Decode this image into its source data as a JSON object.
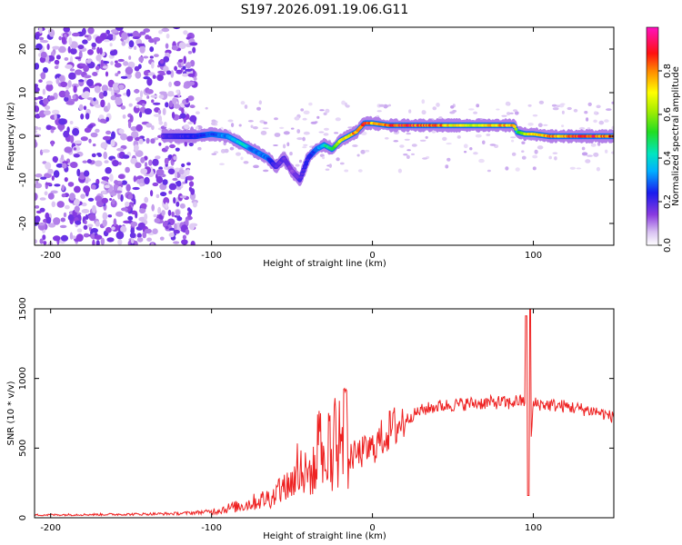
{
  "title": "S197.2026.091.19.06.G11",
  "chart_data": [
    {
      "type": "heatmap",
      "title": "S197.2026.091.19.06.G11",
      "xlabel": "Height of straight line (km)",
      "ylabel": "Frequency (Hz)",
      "xlim": [
        -210,
        150
      ],
      "ylim": [
        -25,
        25
      ],
      "xticks": [
        -200,
        -100,
        0,
        100
      ],
      "yticks": [
        -20,
        -10,
        0,
        10,
        20
      ],
      "colorbar": {
        "label": "Normalized spectral amplitude",
        "range": [
          0,
          1
        ],
        "ticks": [
          "0.0",
          "0.2",
          "0.4",
          "0.6",
          "0.8"
        ],
        "colormap": "rainbow (white-violet-blue-cyan-green-yellow-red-magenta)"
      },
      "ridge": {
        "description": "Main Doppler ridge of normalized spectral amplitude vs height",
        "x": [
          -130,
          -110,
          -100,
          -90,
          -80,
          -75,
          -70,
          -65,
          -60,
          -55,
          -50,
          -45,
          -40,
          -35,
          -30,
          -25,
          -20,
          -15,
          -10,
          -5,
          0,
          10,
          20,
          40,
          60,
          80,
          88,
          90,
          95,
          100,
          110,
          120,
          130,
          150
        ],
        "y": [
          0,
          0,
          0.5,
          0,
          -2,
          -3,
          -4,
          -5,
          -7,
          -5,
          -8,
          -10,
          -5,
          -3,
          -2,
          -3,
          -1,
          0,
          1,
          3,
          3,
          2.5,
          2.5,
          2.5,
          2.5,
          2.5,
          2.5,
          1,
          0.5,
          0.5,
          0,
          0,
          0,
          0
        ],
        "amplitude": [
          0.2,
          0.25,
          0.3,
          0.35,
          0.45,
          0.3,
          0.35,
          0.3,
          0.2,
          0.2,
          0.15,
          0.2,
          0.25,
          0.3,
          0.45,
          0.6,
          0.75,
          0.8,
          0.9,
          0.95,
          0.85,
          0.9,
          0.95,
          0.9,
          0.7,
          0.85,
          0.85,
          0.5,
          0.7,
          0.8,
          0.85,
          0.9,
          0.95,
          0.9
        ]
      }
    },
    {
      "type": "line",
      "xlabel": "Height of straight line (km)",
      "ylabel": "SNR (10 * v/v)",
      "xlim": [
        -210,
        150
      ],
      "ylim": [
        0,
        1500
      ],
      "xticks": [
        -200,
        -100,
        0,
        100
      ],
      "yticks": [
        0,
        500,
        1000,
        1500
      ],
      "series": [
        {
          "name": "SNR",
          "color": "#ee2222",
          "x": [
            -210,
            -150,
            -120,
            -100,
            -80,
            -60,
            -50,
            -40,
            -30,
            -25,
            -20,
            -15,
            -10,
            0,
            10,
            20,
            30,
            40,
            60,
            80,
            85,
            90,
            95,
            96,
            97,
            100,
            120,
            140,
            150
          ],
          "y": [
            20,
            25,
            30,
            45,
            90,
            160,
            260,
            320,
            370,
            410,
            460,
            430,
            450,
            500,
            620,
            700,
            770,
            800,
            820,
            830,
            820,
            840,
            830,
            1430,
            250,
            820,
            800,
            760,
            720
          ]
        }
      ]
    }
  ]
}
